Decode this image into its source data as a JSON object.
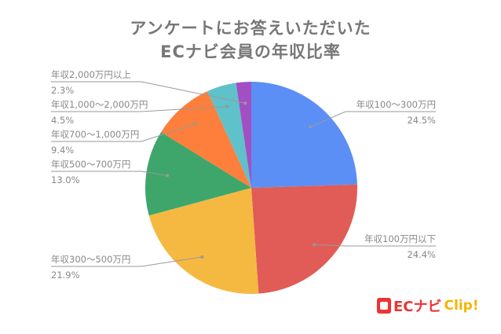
{
  "chart_data": {
    "type": "pie",
    "title_line1": "アンケートにお答えいただいた",
    "title_line2": "ECナビ会員の年収比率",
    "start": "top",
    "direction": "clockwise",
    "slices": [
      {
        "label": "年収100～300万円",
        "value": 24.5,
        "value_label": "24.5%",
        "color": "#5b8ff5"
      },
      {
        "label": "年収100万円以下",
        "value": 24.4,
        "value_label": "24.4%",
        "color": "#e15c56"
      },
      {
        "label": "年収300～500万円",
        "value": 21.9,
        "value_label": "21.9%",
        "color": "#f5b942"
      },
      {
        "label": "年収500～700万円",
        "value": 13.0,
        "value_label": "13.0%",
        "color": "#3ea66b"
      },
      {
        "label": "年収700～1,000万円",
        "value": 9.4,
        "value_label": "9.4%",
        "color": "#fd7f3b"
      },
      {
        "label": "年収1,000～2,000万円",
        "value": 4.5,
        "value_label": "4.5%",
        "color": "#5fc1c9"
      },
      {
        "label": "年収2,000万円以上",
        "value": 2.3,
        "value_label": "2.3%",
        "color": "#a24fc4"
      }
    ]
  },
  "logo": {
    "brand": "ECナビ",
    "suffix": "Clip!"
  }
}
